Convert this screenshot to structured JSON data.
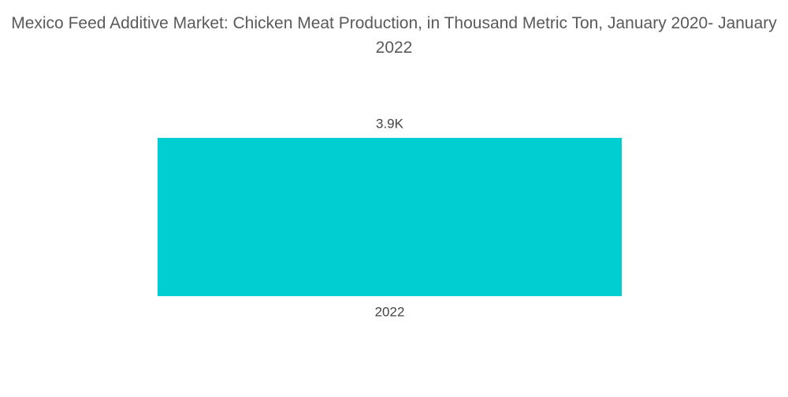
{
  "chart_data": {
    "type": "bar",
    "title": "Mexico Feed Additive Market: Chicken Meat Production, in Thousand Metric Ton, January 2020- January 2022",
    "categories": [
      "2022"
    ],
    "values": [
      3900
    ],
    "value_labels": [
      "3.9K"
    ],
    "color": "#00ced1"
  }
}
